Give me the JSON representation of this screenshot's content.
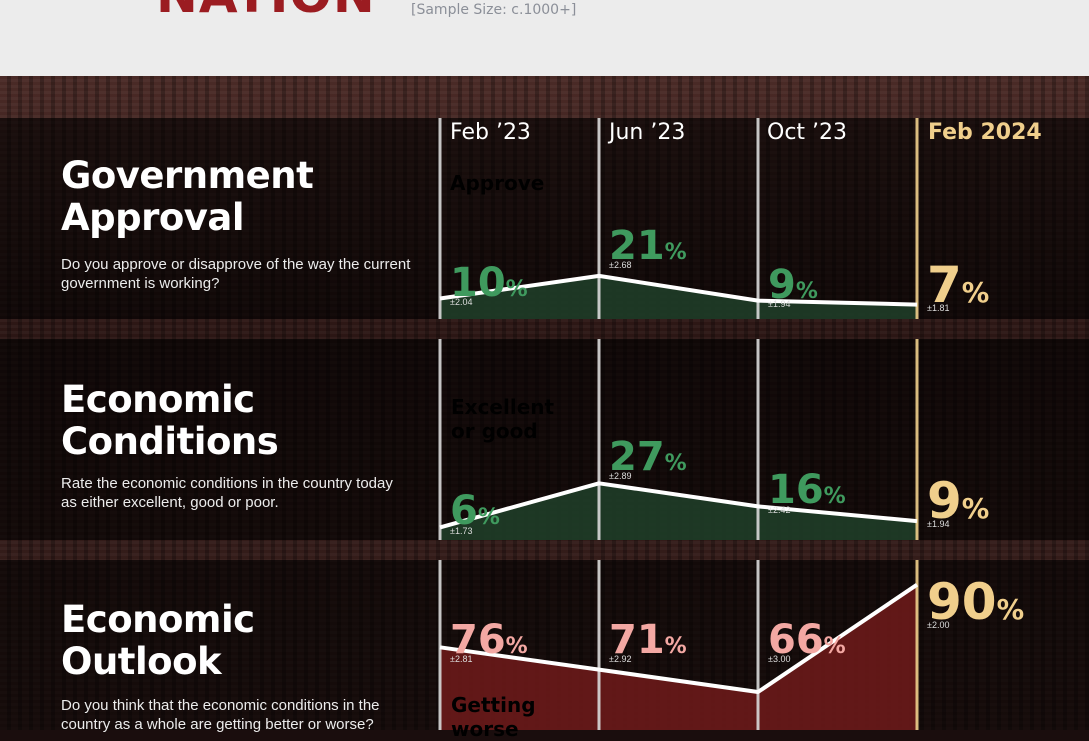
{
  "header": {
    "logo_text": "NATION",
    "sample_size": "[Sample Size: c.1000+]"
  },
  "columns": [
    "Feb ’23",
    "Jun ’23",
    "Oct ’23",
    "Feb 2024"
  ],
  "colors": {
    "green": "#3f9a5e",
    "green_fill": "#1f3d28",
    "red_text": "#f3a8a3",
    "red_fill": "#6a1a1a",
    "highlight": "#f0cf8c",
    "line": "#ffffff"
  },
  "chart_data": [
    {
      "type": "area",
      "title": "Government Approval",
      "question": "Do you approve or disapprove of the way the current government is working?",
      "metric_label": "Approve",
      "categories": [
        "Feb ’23",
        "Jun ’23",
        "Oct ’23",
        "Feb 2024"
      ],
      "values": [
        10,
        21,
        9,
        7
      ],
      "margins": [
        "±2.04",
        "±2.68",
        "±1.94",
        "±1.81"
      ],
      "unit": "%"
    },
    {
      "type": "area",
      "title": "Economic Conditions",
      "question": "Rate the economic conditions in the country today as either excellent, good or poor.",
      "metric_label": "Excellent or good",
      "categories": [
        "Feb ’23",
        "Jun ’23",
        "Oct ’23",
        "Feb 2024"
      ],
      "values": [
        6,
        27,
        16,
        9
      ],
      "margins": [
        "±1.73",
        "±2.89",
        "±2.42",
        "±1.94"
      ],
      "unit": "%"
    },
    {
      "type": "area",
      "title": "Economic Outlook",
      "question": "Do you think that the economic conditions in the country as a whole are getting better or worse?",
      "metric_label": "Getting worse",
      "categories": [
        "Feb ’23",
        "Jun ’23",
        "Oct ’23",
        "Feb 2024"
      ],
      "values": [
        76,
        71,
        66,
        90
      ],
      "margins": [
        "±2.81",
        "±2.92",
        "±3.00",
        "±2.00"
      ],
      "unit": "%"
    }
  ]
}
